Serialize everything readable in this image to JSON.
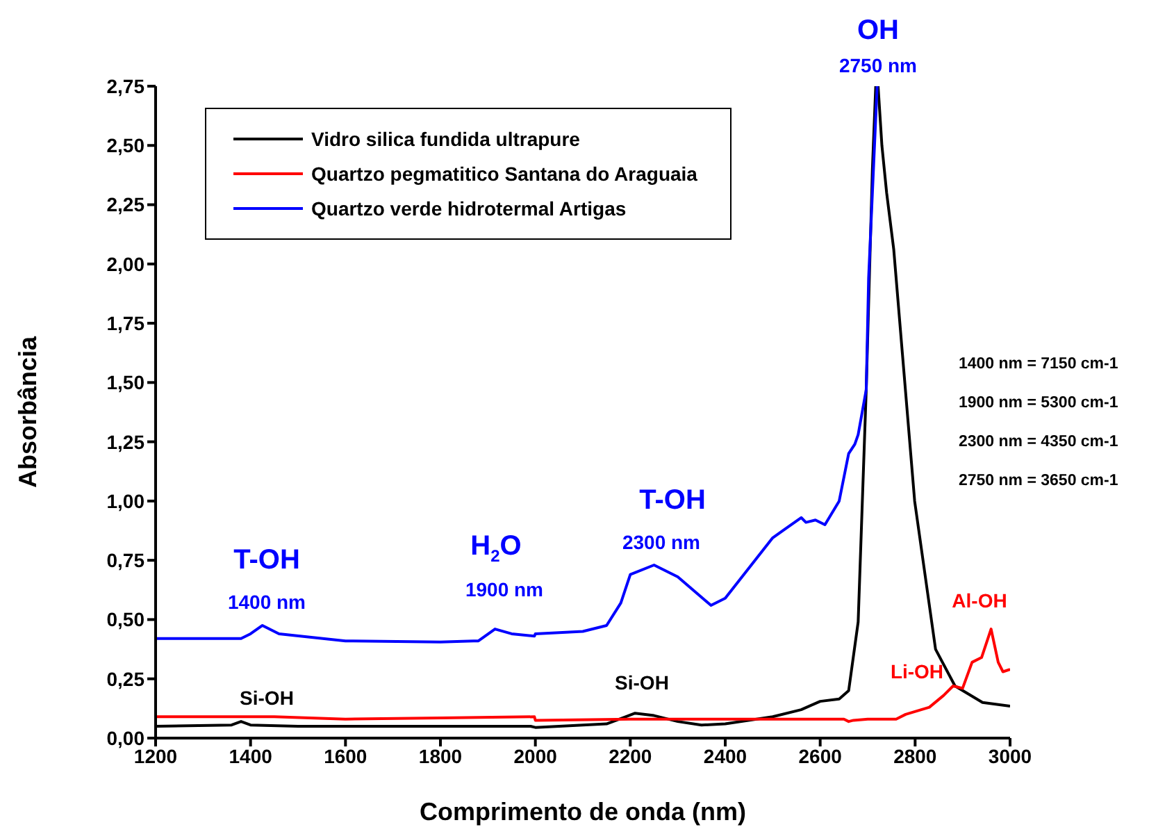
{
  "chart_data": {
    "type": "line",
    "xlabel": "Comprimento de onda (nm)",
    "ylabel": "Absorbância",
    "xlim": [
      1200,
      3000
    ],
    "xticks": [
      1200,
      1400,
      1600,
      1800,
      2000,
      2200,
      2400,
      2600,
      2800,
      3000
    ],
    "ylim": [
      0,
      2.75
    ],
    "yticks": [
      {
        "value": 0,
        "label": "0,00"
      },
      {
        "value": 0.25,
        "label": "0,25"
      },
      {
        "value": 0.5,
        "label": "0,50"
      },
      {
        "value": 0.75,
        "label": "0,75"
      },
      {
        "value": 1,
        "label": "1,00"
      },
      {
        "value": 1.25,
        "label": "1,25"
      },
      {
        "value": 1.5,
        "label": "1,50"
      },
      {
        "value": 1.75,
        "label": "1,75"
      },
      {
        "value": 2,
        "label": "2,00"
      },
      {
        "value": 2.25,
        "label": "2,25"
      },
      {
        "value": 2.5,
        "label": "2,50"
      },
      {
        "value": 2.75,
        "label": "2,75"
      }
    ],
    "legend": "top left",
    "grid": false,
    "marker": "none",
    "line_style": "solid",
    "series": [
      {
        "name": "Vidro silica fundida ultrapure",
        "color": "#000000",
        "x": [
          1200,
          1360,
          1380,
          1400,
          1500,
          1700,
          1900,
          1990,
          2000,
          2150,
          2190,
          2210,
          2250,
          2300,
          2350,
          2400,
          2500,
          2560,
          2600,
          2640,
          2660,
          2680,
          2697,
          2710,
          2717,
          2722,
          2730,
          2740,
          2755,
          2799,
          2843,
          2884,
          2942,
          3000
        ],
        "values": [
          0.05,
          0.055,
          0.07,
          0.055,
          0.05,
          0.05,
          0.05,
          0.05,
          0.045,
          0.06,
          0.09,
          0.105,
          0.095,
          0.07,
          0.055,
          0.06,
          0.09,
          0.12,
          0.155,
          0.165,
          0.2,
          0.49,
          1.47,
          2.4,
          2.75,
          2.75,
          2.5,
          2.3,
          2.06,
          1.0,
          0.375,
          0.22,
          0.15,
          0.135
        ]
      },
      {
        "name": "Quartzo pegmatitico Santana do Araguaia",
        "color": "#ff0000",
        "x": [
          1200,
          1450,
          1600,
          1800,
          1998,
          2000,
          2200,
          2400,
          2650,
          2660,
          2670,
          2700,
          2760,
          2780,
          2830,
          2860,
          2880,
          2900,
          2920,
          2940,
          2960,
          2975,
          2985,
          3000
        ],
        "values": [
          0.09,
          0.09,
          0.08,
          0.085,
          0.09,
          0.075,
          0.08,
          0.08,
          0.08,
          0.07,
          0.075,
          0.08,
          0.08,
          0.1,
          0.13,
          0.18,
          0.22,
          0.21,
          0.32,
          0.34,
          0.46,
          0.32,
          0.28,
          0.29
        ]
      },
      {
        "name": "Quartzo verde hidrotermal Artigas",
        "color": "#0000ff",
        "x": [
          1200,
          1380,
          1400,
          1425,
          1460,
          1600,
          1800,
          1870,
          1880,
          1915,
          1950,
          1998,
          2000,
          2100,
          2150,
          2180,
          2200,
          2250,
          2300,
          2370,
          2400,
          2500,
          2560,
          2570,
          2590,
          2610,
          2640,
          2660,
          2673,
          2680,
          2697,
          2702,
          2720
        ],
        "values": [
          0.42,
          0.42,
          0.44,
          0.475,
          0.44,
          0.41,
          0.405,
          0.41,
          0.41,
          0.46,
          0.44,
          0.43,
          0.44,
          0.45,
          0.475,
          0.57,
          0.69,
          0.73,
          0.68,
          0.56,
          0.59,
          0.845,
          0.93,
          0.91,
          0.92,
          0.9,
          1.0,
          1.2,
          1.24,
          1.28,
          1.47,
          1.94,
          2.75
        ]
      }
    ],
    "annotations": [
      "T-OH",
      "1400 nm",
      "H$_{2}$O",
      "1900 nm",
      "T-OH",
      "2300 nm",
      "OH",
      "2750 nm",
      "Si-OH",
      "Si-OH",
      "Li-OH",
      "Al-OH",
      "1400 nm = 7150 cm-1",
      "1900 nm = 5300 cm-1",
      "2300 nm = 4350 cm-1",
      "2750 nm = 3650 cm-1"
    ]
  }
}
